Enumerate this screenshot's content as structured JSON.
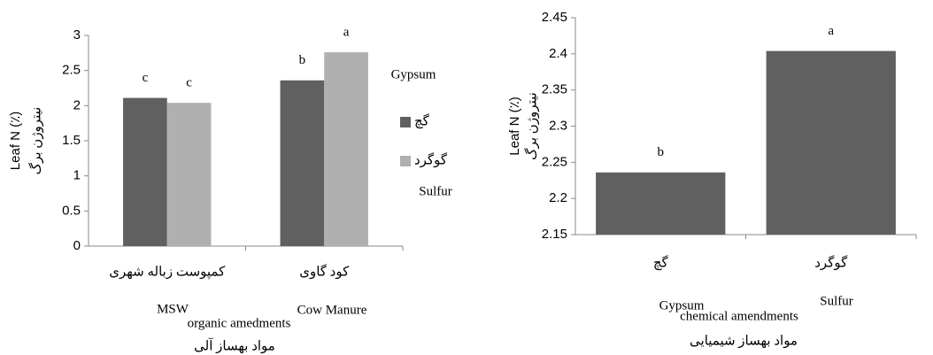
{
  "chart_data": [
    {
      "type": "bar",
      "ylabel": "Leaf N (٪)",
      "ylabel_fa": "نیتروژن برگ",
      "categories": [
        "کمپوست زباله شهری",
        "کود گاوی"
      ],
      "categories_en": [
        "MSW",
        "Cow Manure"
      ],
      "xlabel": "organic amedments",
      "xlabel_fa": "مواد بهساز آلی",
      "series": [
        {
          "name": "گچ",
          "name_en": "Gypsum",
          "color": "#606060",
          "values": [
            2.11,
            2.36
          ],
          "letters": [
            "c",
            "b"
          ]
        },
        {
          "name": "گوگرد",
          "name_en": "Sulfur",
          "color": "#b0b0b0",
          "values": [
            2.04,
            2.76
          ],
          "letters": [
            "c",
            "a"
          ]
        }
      ],
      "ylim": [
        0,
        3
      ],
      "yticks": [
        0,
        0.5,
        1,
        1.5,
        2,
        2.5,
        3
      ]
    },
    {
      "type": "bar",
      "ylabel": "Leaf N (٪)",
      "ylabel_fa": "نیتروژن برگ",
      "categories": [
        "گچ",
        "گوگرد"
      ],
      "categories_en": [
        "Gypsum",
        "Sulfur"
      ],
      "xlabel": "chemical amendments",
      "xlabel_fa": "مواد بهساز شیمیایی",
      "series": [
        {
          "color": "#606060",
          "values": [
            2.236,
            2.404
          ],
          "letters": [
            "b",
            "a"
          ]
        }
      ],
      "ylim": [
        2.15,
        2.45
      ],
      "yticks": [
        2.15,
        2.2,
        2.25,
        2.3,
        2.35,
        2.4,
        2.45
      ]
    }
  ]
}
